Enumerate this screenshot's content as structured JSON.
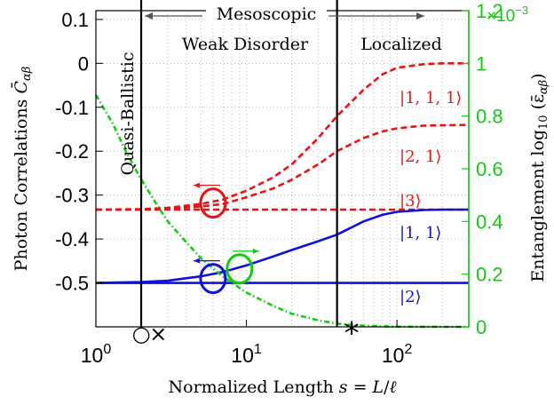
{
  "chart_data": {
    "type": "line",
    "xscale": "log",
    "xlim": [
      1,
      300
    ],
    "ylim_left": [
      -0.6,
      0.12
    ],
    "ylim_right": [
      0,
      0.0012
    ],
    "right_axis_multiplier": "×10−3",
    "xlabel": "Normalized Length s = L/ℓ",
    "ylabel_left": "Photon Correlations C̄αβ",
    "ylabel_right": "Entanglement log10 (ε̄αβ)",
    "x_ticks": [
      {
        "base": "10",
        "exp": "0",
        "value": 1
      },
      {
        "base": "10",
        "exp": "1",
        "value": 10
      },
      {
        "base": "10",
        "exp": "2",
        "value": 100
      }
    ],
    "y_ticks_left": [
      "0.1",
      "0",
      "-0.1",
      "-0.2",
      "-0.3",
      "-0.4",
      "-0.5"
    ],
    "y_ticks_right": [
      "1.2",
      "1",
      "0.8",
      "0.6",
      "0.4",
      "0.2",
      "0"
    ],
    "grid": true,
    "regions": [
      {
        "label": "Quasi-Ballistic",
        "x_from": 1,
        "x_to": 2
      },
      {
        "label": "Weak Disorder",
        "x_from": 2,
        "x_to": 40
      },
      {
        "label": "Localized",
        "x_from": 40,
        "x_to": 300
      }
    ],
    "mesoscopic_label": "Mesoscopic",
    "boundaries": [
      2,
      40
    ],
    "markers": [
      {
        "symbol": "○",
        "x": 2
      },
      {
        "symbol": "×",
        "x": 2.6
      },
      {
        "symbol": "*",
        "x": 50
      }
    ],
    "series": [
      {
        "name": "|1, 1, 1⟩",
        "axis": "left",
        "color": "#ee1111",
        "style": "dashed",
        "x": [
          1,
          2,
          3,
          5,
          7,
          10,
          15,
          20,
          30,
          40,
          60,
          80,
          100,
          150,
          200,
          300
        ],
        "y": [
          -0.333,
          -0.332,
          -0.329,
          -0.32,
          -0.31,
          -0.29,
          -0.26,
          -0.23,
          -0.17,
          -0.12,
          -0.06,
          -0.025,
          -0.01,
          -0.002,
          0.0,
          0.0
        ]
      },
      {
        "name": "|2, 1⟩",
        "axis": "left",
        "color": "#ee1111",
        "style": "dashed",
        "x": [
          1,
          2,
          3,
          5,
          7,
          10,
          15,
          20,
          30,
          40,
          60,
          80,
          100,
          150,
          200,
          300
        ],
        "y": [
          -0.333,
          -0.333,
          -0.331,
          -0.326,
          -0.32,
          -0.305,
          -0.285,
          -0.265,
          -0.23,
          -0.2,
          -0.17,
          -0.155,
          -0.148,
          -0.142,
          -0.141,
          -0.14
        ]
      },
      {
        "name": "|3⟩",
        "axis": "left",
        "color": "#ee1111",
        "style": "dashed",
        "x": [
          1,
          2,
          5,
          10,
          20,
          40,
          100,
          300
        ],
        "y": [
          -0.333,
          -0.333,
          -0.333,
          -0.333,
          -0.333,
          -0.333,
          -0.333,
          -0.333
        ]
      },
      {
        "name": "|1, 1⟩",
        "axis": "left",
        "color": "#1111dd",
        "style": "solid",
        "x": [
          1,
          2,
          3,
          5,
          7,
          10,
          15,
          20,
          30,
          40,
          60,
          80,
          100,
          150,
          200,
          300
        ],
        "y": [
          -0.5,
          -0.498,
          -0.495,
          -0.485,
          -0.475,
          -0.46,
          -0.44,
          -0.425,
          -0.405,
          -0.39,
          -0.36,
          -0.345,
          -0.338,
          -0.334,
          -0.333,
          -0.333
        ]
      },
      {
        "name": "|2⟩",
        "axis": "left",
        "color": "#1111dd",
        "style": "solid",
        "x": [
          1,
          2,
          5,
          10,
          20,
          40,
          100,
          300
        ],
        "y": [
          -0.5,
          -0.5,
          -0.5,
          -0.5,
          -0.5,
          -0.5,
          -0.5,
          -0.5
        ]
      },
      {
        "name": "",
        "axis": "right",
        "color": "#11cc11",
        "style": "dashdot",
        "x": [
          1,
          1.3,
          1.6,
          2,
          2.5,
          3,
          4,
          5,
          7,
          10,
          15,
          20,
          30,
          40,
          60,
          100,
          200,
          300
        ],
        "y": [
          0.00088,
          0.00077,
          0.00066,
          0.00056,
          0.00047,
          0.0004,
          0.00032,
          0.00026,
          0.00019,
          0.00013,
          8e-05,
          5e-05,
          2.5e-05,
          1.2e-05,
          4e-06,
          8e-07,
          0.0,
          0.0
        ]
      }
    ],
    "axis_markers": [
      {
        "color": "#ee1111",
        "axis": "left",
        "at_x": 6
      },
      {
        "color": "#11cc11",
        "axis": "right",
        "at_x": 9
      },
      {
        "color": "#1111dd",
        "axis": "left",
        "at_x": 6
      }
    ]
  }
}
